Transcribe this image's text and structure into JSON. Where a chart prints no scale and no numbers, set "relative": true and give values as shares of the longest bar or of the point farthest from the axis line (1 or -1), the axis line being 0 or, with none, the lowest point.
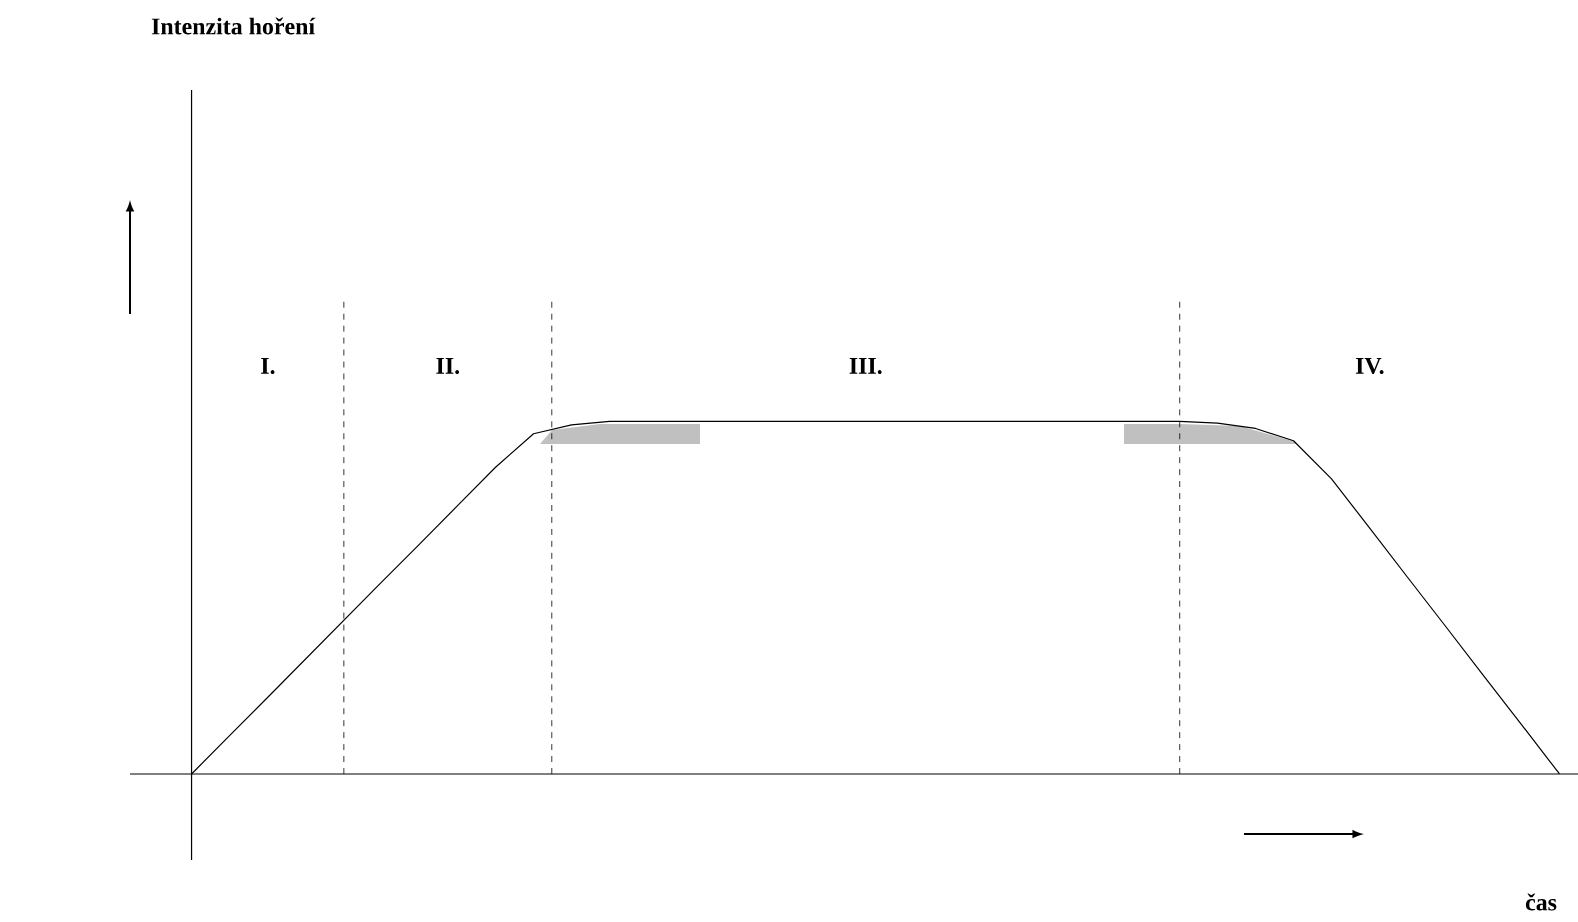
{
  "chart_data": {
    "type": "line",
    "relative": true,
    "xlabel": "čas",
    "title": "Intenzita hoření",
    "marker": "none",
    "line_style": "solid",
    "categories": [
      null,
      null,
      null,
      null,
      null,
      null,
      null,
      null,
      null,
      null,
      null,
      null,
      null,
      null,
      null,
      null,
      null,
      null,
      null,
      null,
      null,
      null,
      null,
      null,
      null,
      null,
      null,
      null,
      null,
      null,
      null,
      null,
      null,
      null,
      null,
      null,
      null
    ],
    "series": [
      {
        "color": "#000000",
        "values": [
          0,
          0.109,
          0.217,
          0.326,
          0.435,
          0.544,
          0.652,
          0.761,
          0.87,
          0.965,
          0.99,
          1,
          1,
          1,
          1,
          1,
          1,
          1,
          1,
          1,
          1,
          1,
          1,
          1,
          1,
          1,
          1,
          0.995,
          0.98,
          0.945,
          0.837,
          0.698,
          0.558,
          0.419,
          0.279,
          0.14,
          0
        ]
      }
    ],
    "annotations": [
      "I.",
      "II.",
      "III.",
      "IV."
    ]
  }
}
